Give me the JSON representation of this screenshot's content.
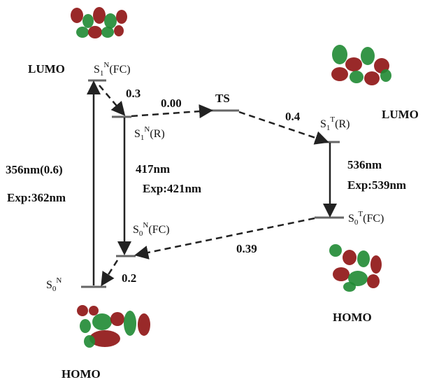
{
  "orbitals": {
    "lumo_left": "LUMO",
    "lumo_right": "LUMO",
    "homo_right": "HOMO",
    "homo_bottom": "HOMO"
  },
  "states": {
    "s1n_fc": {
      "base": "S",
      "sub": "1",
      "sup": "N",
      "suffix": "(FC)"
    },
    "s1n_r": {
      "base": "S",
      "sub": "1",
      "sup": "N",
      "suffix": "(R)"
    },
    "ts": "TS",
    "s1t_r": {
      "base": "S",
      "sub": "1",
      "sup": "T",
      "suffix": "(R)"
    },
    "s0t_fc": {
      "base": "S",
      "sub": "0",
      "sup": "T",
      "suffix": "(FC)"
    },
    "s0n_fc": {
      "base": "S",
      "sub": "0",
      "sup": "N",
      "suffix": "(FC)"
    },
    "s0n": {
      "base": "S",
      "sub": "0",
      "sup": "N"
    }
  },
  "annotations": {
    "a_0_3": "0.3",
    "a_0_00": "0.00",
    "a_0_4": "0.4",
    "a_0_39": "0.39",
    "a_0_2": "0.2",
    "abs_calc": "356nm(0.6)",
    "abs_exp": "Exp:362nm",
    "em_n_calc": "417nm",
    "em_n_exp": "Exp:421nm",
    "em_t_calc": "536nm",
    "em_t_exp": "Exp:539nm"
  }
}
